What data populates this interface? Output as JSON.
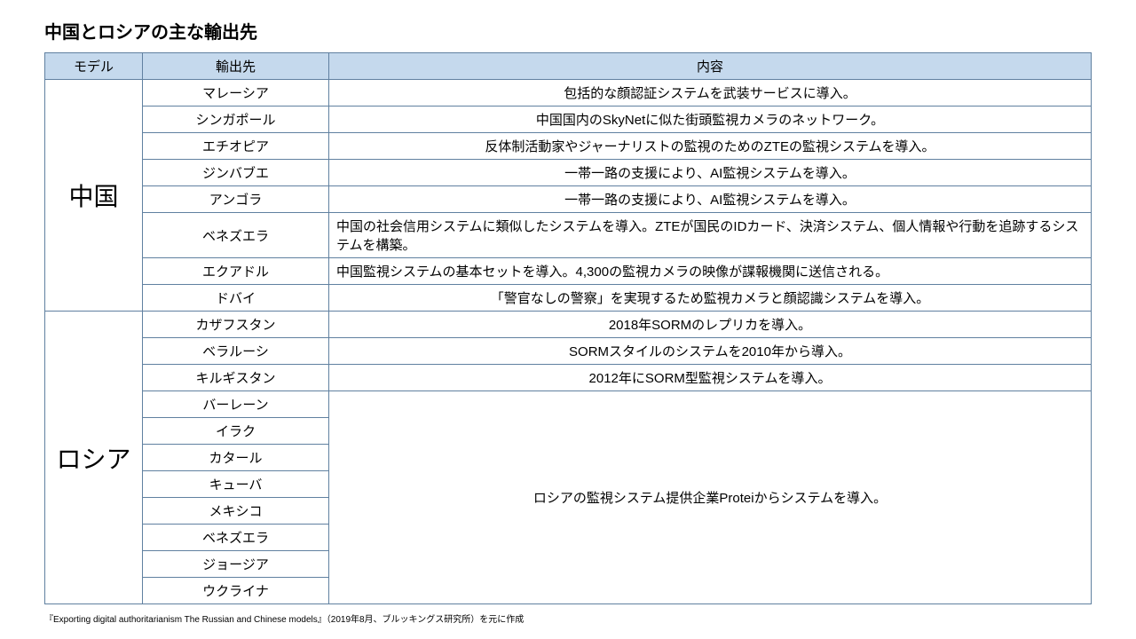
{
  "title": "中国とロシアの主な輸出先",
  "headers": {
    "model": "モデル",
    "dest": "輸出先",
    "desc": "内容"
  },
  "table": {
    "header_bg": "#c5d9ed",
    "border_color": "#6080a0",
    "col_widths": {
      "model": 110,
      "dest": 210
    }
  },
  "china": {
    "label": "中国",
    "rows": [
      {
        "dest": "マレーシア",
        "desc": "包括的な顔認証システムを武装サービスに導入。",
        "align": "center"
      },
      {
        "dest": "シンガポール",
        "desc": "中国国内のSkyNetに似た街頭監視カメラのネットワーク。",
        "align": "center"
      },
      {
        "dest": "エチオピア",
        "desc": "反体制活動家やジャーナリストの監視のためのZTEの監視システムを導入。",
        "align": "center"
      },
      {
        "dest": "ジンバブエ",
        "desc": "一帯一路の支援により、AI監視システムを導入。",
        "align": "center"
      },
      {
        "dest": "アンゴラ",
        "desc": "一帯一路の支援により、AI監視システムを導入。",
        "align": "center"
      },
      {
        "dest": "ベネズエラ",
        "desc": "中国の社会信用システムに類似したシステムを導入。ZTEが国民のIDカード、決済システム、個人情報や行動を追跡するシステムを構築。",
        "align": "left"
      },
      {
        "dest": "エクアドル",
        "desc": "中国監視システムの基本セットを導入。4,300の監視カメラの映像が諜報機関に送信される。",
        "align": "left"
      },
      {
        "dest": "ドバイ",
        "desc": "「警官なしの警察」を実現するため監視カメラと顔認識システムを導入。",
        "align": "center"
      }
    ]
  },
  "russia": {
    "label": "ロシア",
    "single_rows": [
      {
        "dest": "カザフスタン",
        "desc": "2018年SORMのレプリカを導入。"
      },
      {
        "dest": "ベラルーシ",
        "desc": "SORMスタイルのシステムを2010年から導入。"
      },
      {
        "dest": "キルギスタン",
        "desc": "2012年にSORM型監視システムを導入。"
      }
    ],
    "merged_group": {
      "dests": [
        "バーレーン",
        "イラク",
        "カタール",
        "キューバ",
        "メキシコ",
        "ベネズエラ",
        "ジョージア",
        "ウクライナ"
      ],
      "desc": "ロシアの監視システム提供企業Proteiからシステムを導入。"
    }
  },
  "source": "『Exporting digital authoritarianism The Russian and Chinese models』（2019年8月、ブルッキングス研究所）を元に作成"
}
